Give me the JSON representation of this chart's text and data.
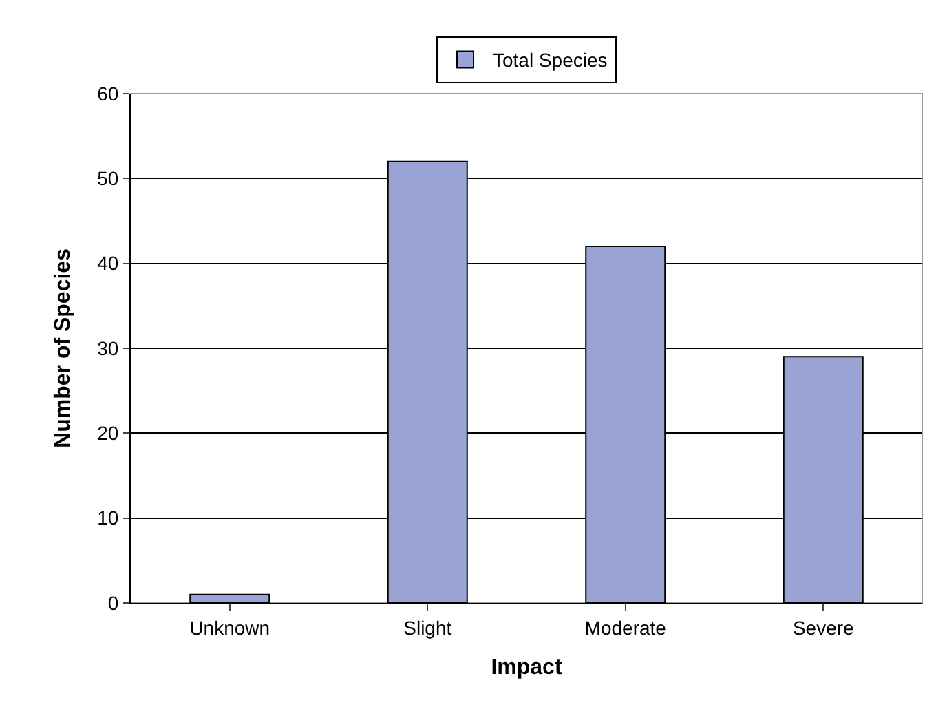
{
  "chart_data": {
    "type": "bar",
    "xlabel": "Impact",
    "ylabel": "Number of Species",
    "categories": [
      "Unknown",
      "Slight",
      "Moderate",
      "Severe"
    ],
    "series": [
      {
        "name": "Total Species",
        "color": "#99a4d4",
        "values": [
          1,
          52,
          42,
          29
        ]
      }
    ],
    "ylim": [
      0,
      60
    ],
    "yticks": [
      0,
      10,
      20,
      30,
      40,
      50,
      60
    ],
    "grid": "y",
    "legend": "top"
  }
}
